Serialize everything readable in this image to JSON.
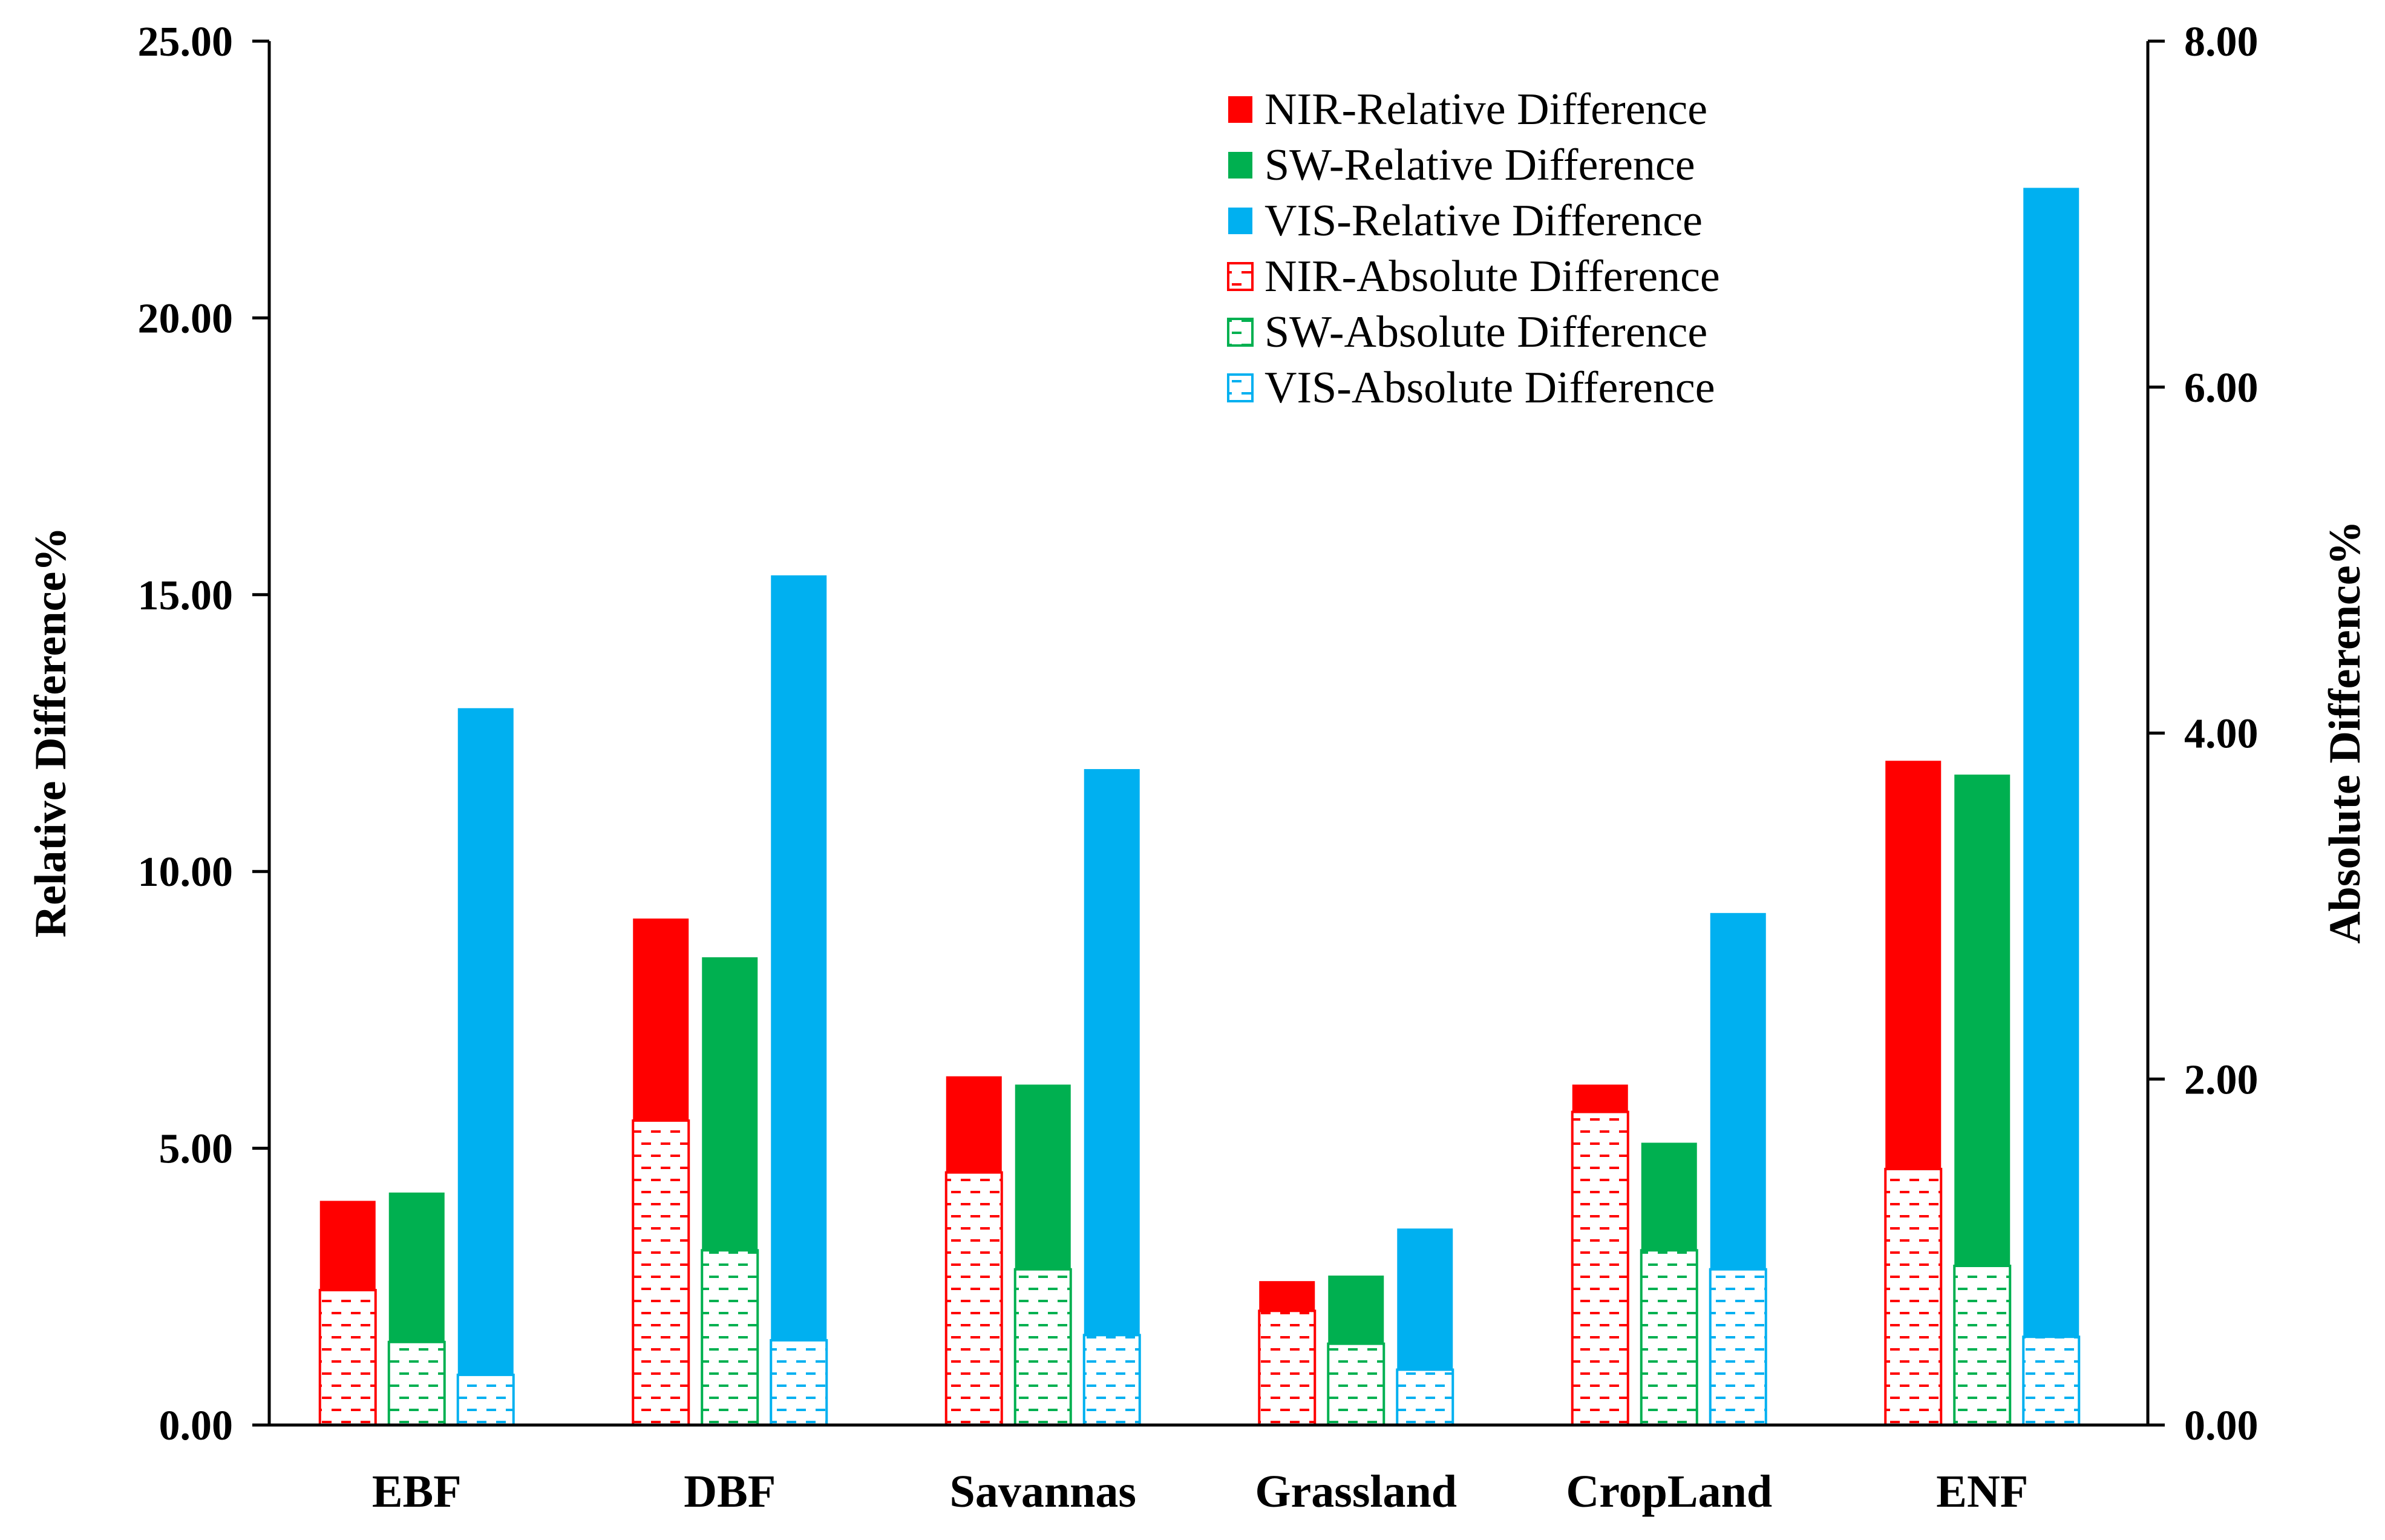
{
  "chart_data": {
    "type": "bar",
    "categories": [
      "EBF",
      "DBF",
      "Savannas",
      "Grassland",
      "CropLand",
      "ENF"
    ],
    "series": [
      {
        "name": "NIR-Relative Difference",
        "axis": "left",
        "color": "#FF0000",
        "fill": "solid",
        "values": [
          4.05,
          9.15,
          6.3,
          2.6,
          6.15,
          12.0
        ]
      },
      {
        "name": "SW-Relative Difference",
        "axis": "left",
        "color": "#00B050",
        "fill": "solid",
        "values": [
          4.2,
          8.45,
          6.15,
          2.7,
          5.1,
          11.75
        ]
      },
      {
        "name": "VIS-Relative Difference",
        "axis": "left",
        "color": "#00B0F0",
        "fill": "solid",
        "values": [
          12.95,
          15.35,
          11.85,
          3.55,
          9.25,
          22.35
        ]
      },
      {
        "name": "NIR-Absolute Difference",
        "axis": "right",
        "color": "#FF0000",
        "fill": "dashed-pattern",
        "values": [
          0.78,
          1.76,
          1.46,
          0.66,
          1.81,
          1.48
        ]
      },
      {
        "name": "SW-Absolute Difference",
        "axis": "right",
        "color": "#00B050",
        "fill": "dashed-pattern",
        "values": [
          0.48,
          1.01,
          0.9,
          0.47,
          1.01,
          0.92
        ]
      },
      {
        "name": "VIS-Absolute Difference",
        "axis": "right",
        "color": "#00B0F0",
        "fill": "dashed-pattern",
        "values": [
          0.29,
          0.49,
          0.52,
          0.32,
          0.9,
          0.51
        ]
      }
    ],
    "ylabel": "Relative Difference%",
    "ylabel_right": "Absolute Difference%",
    "ylim": [
      0,
      25
    ],
    "ylim_right": [
      0,
      8
    ],
    "yticks": [
      "0.00",
      "5.00",
      "10.00",
      "15.00",
      "20.00",
      "25.00"
    ],
    "yticks_right": [
      "0.00",
      "2.00",
      "4.00",
      "6.00",
      "8.00"
    ],
    "legend_position": "top-right",
    "grid": false
  }
}
